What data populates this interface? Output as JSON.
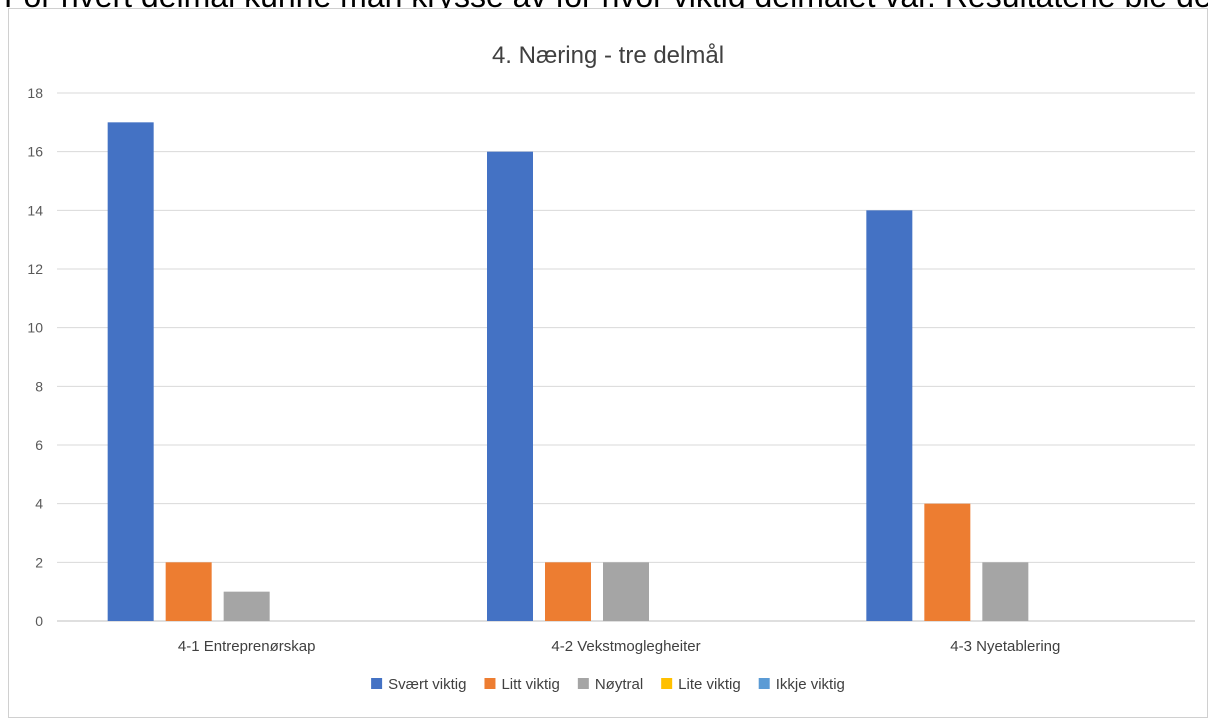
{
  "page": {
    "top_cut_text": "For hvert delmål kunne man krysse av for hvor viktig delmålet var. Resultatene ble deretter"
  },
  "chart_data": {
    "type": "bar",
    "title": "4.  Næring  -  tre delmål",
    "xlabel": "",
    "ylabel": "",
    "categories": [
      "4-1 Entreprenørskap",
      "4-2 Vekstmoglegheiter",
      "4-3 Nyetablering"
    ],
    "series": [
      {
        "name": "Svært viktig",
        "color": "#4472C4",
        "values": [
          17,
          16,
          14
        ]
      },
      {
        "name": "Litt viktig",
        "color": "#ED7D31",
        "values": [
          2,
          2,
          4
        ]
      },
      {
        "name": "Nøytral",
        "color": "#A5A5A5",
        "values": [
          1,
          2,
          2
        ]
      },
      {
        "name": "Lite viktig",
        "color": "#FFC000",
        "values": [
          0,
          0,
          0
        ]
      },
      {
        "name": "Ikkje viktig",
        "color": "#5B9BD5",
        "values": [
          0,
          0,
          0
        ]
      }
    ],
    "ylim": [
      0,
      18
    ],
    "yticks": [
      0,
      2,
      4,
      6,
      8,
      10,
      12,
      14,
      16,
      18
    ],
    "grid": true,
    "legend_position": "bottom"
  }
}
